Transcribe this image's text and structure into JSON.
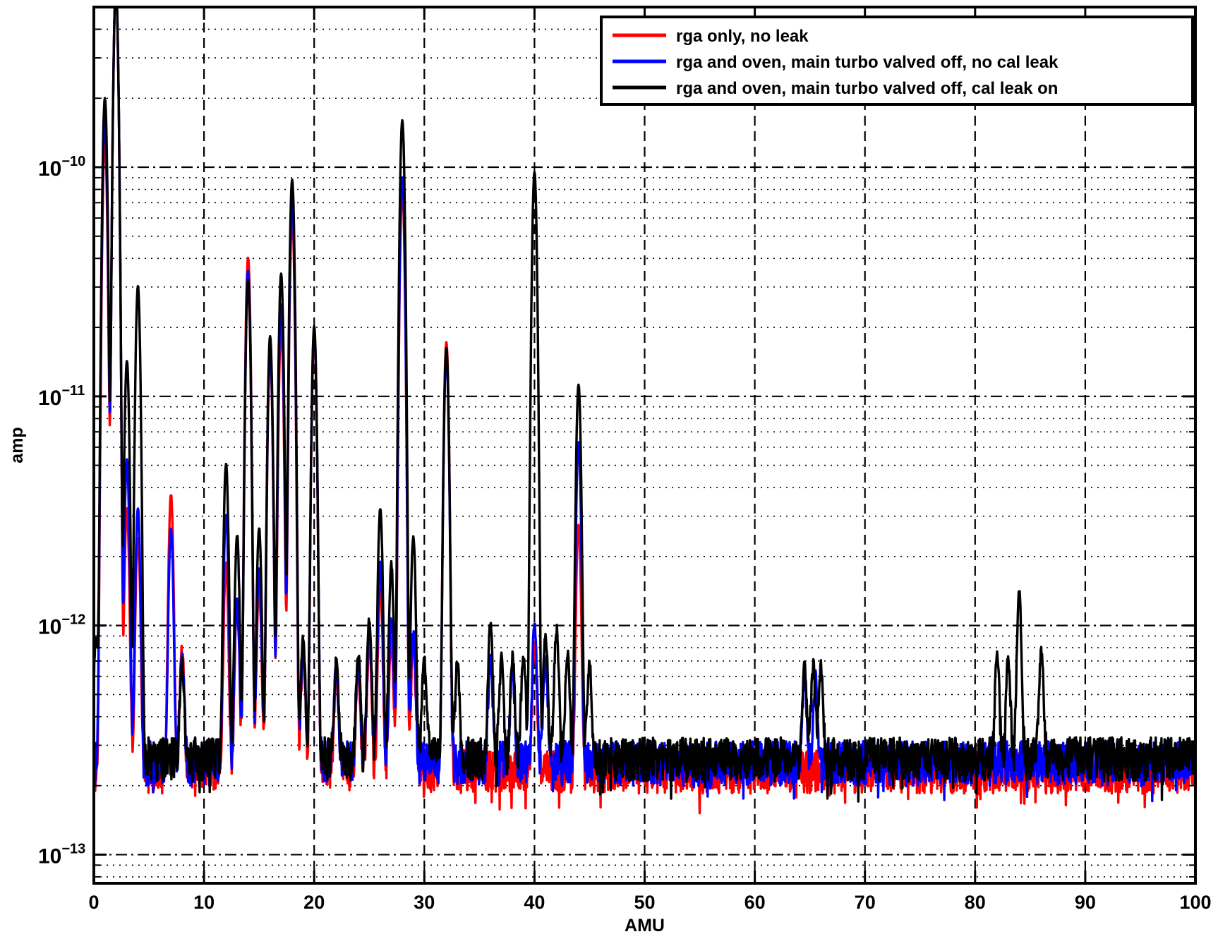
{
  "chart_data": {
    "type": "line",
    "title": "",
    "xlabel": "AMU",
    "ylabel": "amp",
    "xlim": [
      0,
      100
    ],
    "ylim": [
      7.5e-14,
      5e-10
    ],
    "yscale": "log",
    "grid": true,
    "legend_position": "top-right",
    "x_ticks": [
      0,
      10,
      20,
      30,
      40,
      50,
      60,
      70,
      80,
      90,
      100
    ],
    "x_tick_labels": [
      "0",
      "10",
      "20",
      "30",
      "40",
      "50",
      "60",
      "70",
      "80",
      "90",
      "100"
    ],
    "y_tick_exponents": [
      "−13",
      "−12",
      "−11",
      "−10"
    ],
    "y_tick_base": "10",
    "series": [
      {
        "name": "rga only, no leak",
        "color": "#ff0000",
        "baseline": 2.3e-13,
        "peaks": [
          [
            1,
            1.3e-10
          ],
          [
            2,
            6e-10
          ],
          [
            3,
            3e-12
          ],
          [
            4,
            2.2e-12
          ],
          [
            7,
            3.5e-12
          ],
          [
            8,
            5.5e-13
          ],
          [
            12,
            1.6e-12
          ],
          [
            13,
            1e-12
          ],
          [
            14,
            4e-11
          ],
          [
            15,
            1.2e-12
          ],
          [
            16,
            1.5e-11
          ],
          [
            17,
            2e-11
          ],
          [
            18,
            6e-11
          ],
          [
            19,
            5e-13
          ],
          [
            20,
            1.8e-11
          ],
          [
            22,
            3.6e-13
          ],
          [
            24,
            4e-13
          ],
          [
            25,
            6e-13
          ],
          [
            26,
            1.2e-12
          ],
          [
            27,
            6e-13
          ],
          [
            28,
            8e-11
          ],
          [
            29,
            6e-13
          ],
          [
            32,
            1.7e-11
          ],
          [
            40,
            6e-13
          ],
          [
            44,
            2.5e-12
          ]
        ]
      },
      {
        "name": "rga and oven, main turbo valved off, no cal leak",
        "color": "#0000ff",
        "baseline": 2.5e-13,
        "peaks": [
          [
            1,
            1.6e-10
          ],
          [
            2,
            6e-10
          ],
          [
            3,
            5e-12
          ],
          [
            4,
            3e-12
          ],
          [
            7,
            2.4e-12
          ],
          [
            8,
            4.5e-13
          ],
          [
            12,
            2.8e-12
          ],
          [
            13,
            1e-12
          ],
          [
            14,
            3.5e-11
          ],
          [
            15,
            1.5e-12
          ],
          [
            16,
            1.6e-11
          ],
          [
            17,
            2.5e-11
          ],
          [
            18,
            7e-11
          ],
          [
            19,
            5e-13
          ],
          [
            20,
            1.9e-11
          ],
          [
            22,
            3.8e-13
          ],
          [
            24,
            4.2e-13
          ],
          [
            25,
            7e-13
          ],
          [
            26,
            1.6e-12
          ],
          [
            27,
            8e-13
          ],
          [
            28,
            9e-11
          ],
          [
            29,
            7e-13
          ],
          [
            32,
            1.5e-11
          ],
          [
            36,
            4.5e-13
          ],
          [
            38,
            4e-13
          ],
          [
            40,
            7.5e-13
          ],
          [
            41,
            4.5e-13
          ],
          [
            44,
            6e-12
          ],
          [
            64.5,
            3.3e-13
          ],
          [
            65.5,
            3.5e-13
          ]
        ]
      },
      {
        "name": "rga and oven, main turbo valved off, cal leak on",
        "color": "#000000",
        "baseline": 2.6e-13,
        "peaks": [
          [
            0.2,
            6e-13
          ],
          [
            1,
            2e-10
          ],
          [
            2,
            6e-10
          ],
          [
            3,
            1.4e-11
          ],
          [
            4,
            3e-11
          ],
          [
            8,
            4.2e-13
          ],
          [
            12,
            4.8e-12
          ],
          [
            13,
            2.2e-12
          ],
          [
            14,
            3.2e-11
          ],
          [
            15,
            2.4e-12
          ],
          [
            16,
            1.8e-11
          ],
          [
            17,
            3.4e-11
          ],
          [
            18,
            8.8e-11
          ],
          [
            19,
            6e-13
          ],
          [
            20,
            2e-11
          ],
          [
            22,
            4.2e-13
          ],
          [
            24,
            5e-13
          ],
          [
            25,
            8e-13
          ],
          [
            26,
            3e-12
          ],
          [
            27,
            1.6e-12
          ],
          [
            28,
            1.6e-10
          ],
          [
            29,
            2.2e-12
          ],
          [
            30,
            4.8e-13
          ],
          [
            32,
            1.6e-11
          ],
          [
            33,
            4.2e-13
          ],
          [
            36,
            7.5e-13
          ],
          [
            37,
            4.4e-13
          ],
          [
            38,
            4.6e-13
          ],
          [
            39,
            5e-13
          ],
          [
            40,
            9.5e-11
          ],
          [
            41,
            6.5e-13
          ],
          [
            42,
            7.2e-13
          ],
          [
            43,
            5e-13
          ],
          [
            44,
            1.1e-11
          ],
          [
            45,
            4.2e-13
          ],
          [
            64.5,
            3.8e-13
          ],
          [
            65.3,
            4e-13
          ],
          [
            66,
            3.9e-13
          ],
          [
            82,
            4.8e-13
          ],
          [
            83,
            4.4e-13
          ],
          [
            84,
            1.12e-12
          ],
          [
            86,
            5e-13
          ]
        ]
      }
    ]
  }
}
